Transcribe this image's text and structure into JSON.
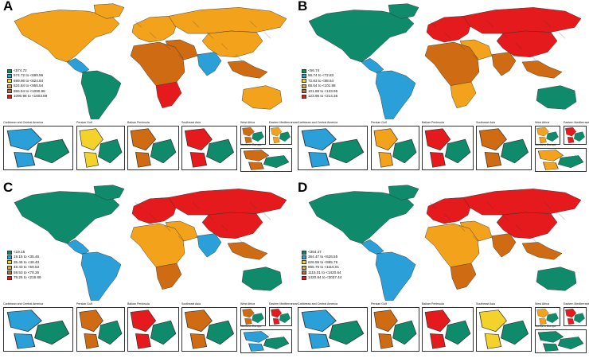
{
  "colors": {
    "c1": "#0f8a6a",
    "c2": "#2a9fd8",
    "c3": "#f4d22c",
    "c4": "#f2a21b",
    "c5": "#cf6b12",
    "c6": "#e41a1c",
    "border": "#333333",
    "ocean": "#ffffff"
  },
  "inset_titles": {
    "caribbean": "Caribbean and Central America",
    "gulf": "Persian Gulf",
    "balkan": "Balkan Peninsula",
    "sea": "Southeast Asia",
    "westafrica": "West Africa",
    "med": "Eastern Mediterranean",
    "neurope": "Northern Europe"
  },
  "panels": [
    {
      "letter": "A",
      "legend": [
        "<574.72",
        "574.72 to <699.96",
        "699.96 to <824.84",
        "824.84 to <955.54",
        "955.54 to <1090.98",
        "1090.98 to <1603.89"
      ],
      "regions": {
        "na": "c4",
        "greenland": "c4",
        "ca": "c2",
        "sa": "c1",
        "eu": "c4",
        "russia": "c4",
        "me": "c5",
        "africa": "c5",
        "safrica": "c6",
        "india": "c2",
        "china": "c4",
        "sea": "c5",
        "aus": "c4"
      },
      "inset_colors": {
        "caribbean": "c2",
        "gulf": "c3",
        "balkan": "c5",
        "sea": "c6",
        "westafrica": "c5",
        "med": "c4",
        "neurope": "c5"
      }
    },
    {
      "letter": "B",
      "legend": [
        "<56.74",
        "56.74 to <72.83",
        "72.83 to <88.64",
        "88.64 to <101.88",
        "101.88 to <123.95",
        "123.95 to <214.36"
      ],
      "regions": {
        "na": "c1",
        "greenland": "c1",
        "ca": "c2",
        "sa": "c2",
        "eu": "c6",
        "russia": "c6",
        "me": "c4",
        "africa": "c5",
        "safrica": "c4",
        "india": "c5",
        "china": "c6",
        "sea": "c5",
        "aus": "c1"
      },
      "inset_colors": {
        "caribbean": "c2",
        "gulf": "c4",
        "balkan": "c6",
        "sea": "c5",
        "westafrica": "c4",
        "med": "c6",
        "neurope": "c4"
      }
    },
    {
      "letter": "C",
      "legend": [
        "<19.15",
        "19.15 to <35.46",
        "35.46 to <48.43",
        "48.43 to <59.53",
        "59.53 to <78.26",
        "78.26 to <216.69"
      ],
      "regions": {
        "na": "c1",
        "greenland": "c1",
        "ca": "c2",
        "sa": "c2",
        "eu": "c6",
        "russia": "c6",
        "me": "c4",
        "africa": "c4",
        "safrica": "c5",
        "india": "c2",
        "china": "c6",
        "sea": "c5",
        "aus": "c1"
      },
      "inset_colors": {
        "caribbean": "c2",
        "gulf": "c5",
        "balkan": "c6",
        "sea": "c5",
        "westafrica": "c5",
        "med": "c6",
        "neurope": "c2"
      }
    },
    {
      "letter": "D",
      "legend": [
        "<364.47",
        "364.47 to <626.55",
        "626.55 to <865.76",
        "865.76 to <1115.01",
        "1115.01 to <1420.64",
        "1420.64 to <3037.44"
      ],
      "regions": {
        "na": "c1",
        "greenland": "c1",
        "ca": "c2",
        "sa": "c2",
        "eu": "c6",
        "russia": "c6",
        "me": "c4",
        "africa": "c4",
        "safrica": "c5",
        "india": "c5",
        "china": "c6",
        "sea": "c5",
        "aus": "c1"
      },
      "inset_colors": {
        "caribbean": "c2",
        "gulf": "c5",
        "balkan": "c6",
        "sea": "c3",
        "westafrica": "c4",
        "med": "c6",
        "neurope": "c1"
      }
    }
  ]
}
